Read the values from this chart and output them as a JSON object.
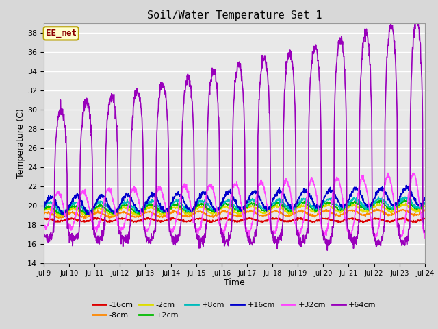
{
  "title": "Soil/Water Temperature Set 1",
  "xlabel": "Time",
  "ylabel": "Temperature (C)",
  "ylim": [
    14,
    39
  ],
  "yticks": [
    14,
    16,
    18,
    20,
    22,
    24,
    26,
    28,
    30,
    32,
    34,
    36,
    38
  ],
  "n_days": 15,
  "xtick_labels": [
    "Jul 9",
    "Jul 10",
    "Jul 11",
    "Jul 12",
    "Jul 13",
    "Jul 14",
    "Jul 15",
    "Jul 16",
    "Jul 17",
    "Jul 18",
    "Jul 19",
    "Jul 20",
    "Jul 21",
    "Jul 22",
    "Jul 23",
    "Jul 24"
  ],
  "fig_bg_color": "#d8d8d8",
  "plot_bg_color": "#e8e8e8",
  "grid_color": "#ffffff",
  "annotation_text": "EE_met",
  "annotation_bg": "#ffffcc",
  "annotation_fg": "#8b0000",
  "annotation_border": "#b8a000",
  "series": [
    {
      "label": "-16cm",
      "color": "#dd0000",
      "lw": 1.2
    },
    {
      "label": "-8cm",
      "color": "#ff8800",
      "lw": 1.0
    },
    {
      "label": "-2cm",
      "color": "#dddd00",
      "lw": 1.0
    },
    {
      "label": "+2cm",
      "color": "#00bb00",
      "lw": 1.0
    },
    {
      "label": "+8cm",
      "color": "#00bbbb",
      "lw": 1.0
    },
    {
      "label": "+16cm",
      "color": "#0000cc",
      "lw": 1.2
    },
    {
      "label": "+32cm",
      "color": "#ff44ff",
      "lw": 1.2
    },
    {
      "label": "+64cm",
      "color": "#9900bb",
      "lw": 1.2
    }
  ]
}
